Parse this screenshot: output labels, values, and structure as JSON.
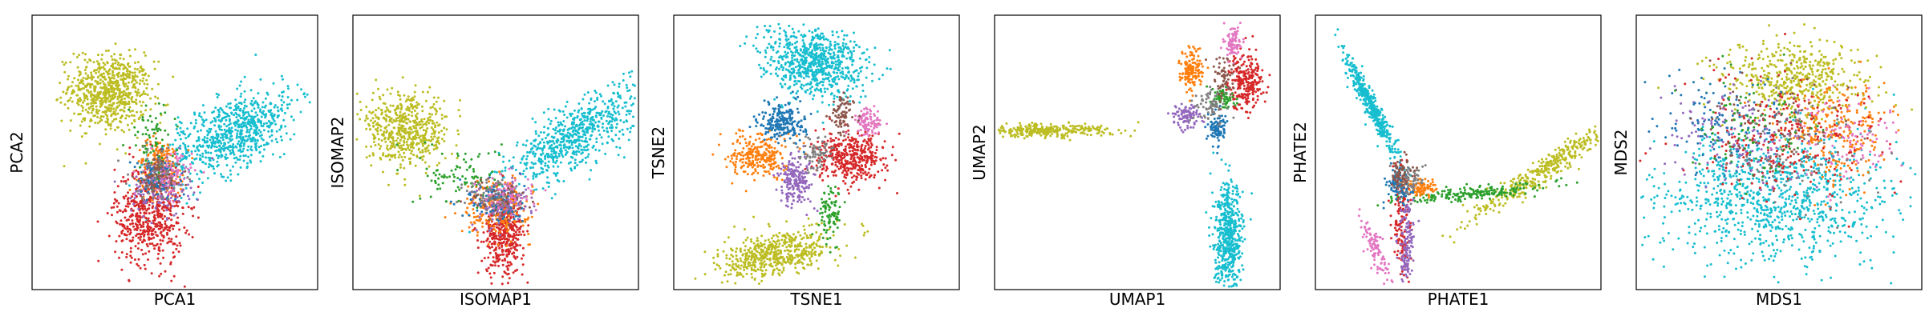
{
  "figure": {
    "panel_count": 6
  },
  "palette": {
    "blue": "#1f77b4",
    "orange": "#ff7f0e",
    "green": "#2ca02c",
    "red": "#d62728",
    "purple": "#9467bd",
    "brown": "#8c564b",
    "pink": "#e377c2",
    "gray": "#7f7f7f",
    "olive": "#bcbd22",
    "cyan": "#17becf"
  },
  "chart_data": [
    {
      "type": "scatter",
      "xlabel": "PCA1",
      "ylabel": "PCA2",
      "xlim": [
        0,
        1
      ],
      "ylim": [
        0,
        1
      ],
      "xticks": false,
      "yticks": false,
      "grid": false,
      "legend": "none",
      "clusters": [
        {
          "color": "olive",
          "n": 700,
          "cx": 0.27,
          "cy": 0.72,
          "sx": 0.07,
          "sy": 0.07,
          "rot": -10
        },
        {
          "color": "cyan",
          "n": 750,
          "cx": 0.7,
          "cy": 0.57,
          "sx": 0.13,
          "sy": 0.06,
          "rot": 30
        },
        {
          "color": "red",
          "n": 550,
          "cx": 0.41,
          "cy": 0.27,
          "sx": 0.06,
          "sy": 0.09,
          "rot": 0
        },
        {
          "color": "orange",
          "n": 200,
          "cx": 0.45,
          "cy": 0.45,
          "sx": 0.04,
          "sy": 0.05,
          "rot": 0
        },
        {
          "color": "purple",
          "n": 140,
          "cx": 0.45,
          "cy": 0.37,
          "sx": 0.05,
          "sy": 0.05,
          "rot": 0
        },
        {
          "color": "blue",
          "n": 90,
          "cx": 0.43,
          "cy": 0.4,
          "sx": 0.04,
          "sy": 0.04,
          "rot": 0
        },
        {
          "color": "pink",
          "n": 90,
          "cx": 0.48,
          "cy": 0.42,
          "sx": 0.04,
          "sy": 0.04,
          "rot": 0
        },
        {
          "color": "green",
          "n": 70,
          "cx": 0.42,
          "cy": 0.55,
          "sx": 0.04,
          "sy": 0.06,
          "rot": 0
        },
        {
          "color": "gray",
          "n": 70,
          "cx": 0.44,
          "cy": 0.43,
          "sx": 0.05,
          "sy": 0.05,
          "rot": 0
        },
        {
          "color": "brown",
          "n": 60,
          "cx": 0.44,
          "cy": 0.41,
          "sx": 0.04,
          "sy": 0.04,
          "rot": 0
        }
      ]
    },
    {
      "type": "scatter",
      "xlabel": "ISOMAP1",
      "ylabel": "ISOMAP2",
      "xlim": [
        0,
        1
      ],
      "ylim": [
        0,
        1
      ],
      "xticks": false,
      "yticks": false,
      "grid": false,
      "legend": "none",
      "clusters": [
        {
          "color": "olive",
          "n": 550,
          "cx": 0.18,
          "cy": 0.58,
          "sx": 0.08,
          "sy": 0.06,
          "rot": -20
        },
        {
          "color": "cyan",
          "n": 700,
          "cx": 0.78,
          "cy": 0.56,
          "sx": 0.14,
          "sy": 0.05,
          "rot": 35
        },
        {
          "color": "red",
          "n": 400,
          "cx": 0.53,
          "cy": 0.2,
          "sx": 0.035,
          "sy": 0.07,
          "rot": 0
        },
        {
          "color": "orange",
          "n": 220,
          "cx": 0.5,
          "cy": 0.3,
          "sx": 0.06,
          "sy": 0.05,
          "rot": 0
        },
        {
          "color": "purple",
          "n": 130,
          "cx": 0.52,
          "cy": 0.31,
          "sx": 0.05,
          "sy": 0.04,
          "rot": 0
        },
        {
          "color": "blue",
          "n": 90,
          "cx": 0.5,
          "cy": 0.32,
          "sx": 0.05,
          "sy": 0.04,
          "rot": 0
        },
        {
          "color": "green",
          "n": 90,
          "cx": 0.38,
          "cy": 0.42,
          "sx": 0.07,
          "sy": 0.05,
          "rot": 0
        },
        {
          "color": "gray",
          "n": 70,
          "cx": 0.5,
          "cy": 0.34,
          "sx": 0.05,
          "sy": 0.04,
          "rot": 0
        },
        {
          "color": "brown",
          "n": 60,
          "cx": 0.52,
          "cy": 0.33,
          "sx": 0.05,
          "sy": 0.04,
          "rot": 0
        },
        {
          "color": "pink",
          "n": 60,
          "cx": 0.55,
          "cy": 0.35,
          "sx": 0.05,
          "sy": 0.04,
          "rot": 0
        }
      ]
    },
    {
      "type": "scatter",
      "xlabel": "TSNE1",
      "ylabel": "TSNE2",
      "xlim": [
        0,
        1
      ],
      "ylim": [
        0,
        1
      ],
      "xticks": false,
      "yticks": false,
      "grid": false,
      "legend": "none",
      "clusters": [
        {
          "color": "cyan",
          "n": 750,
          "cx": 0.49,
          "cy": 0.83,
          "sx": 0.09,
          "sy": 0.06,
          "rot": -15
        },
        {
          "color": "olive",
          "n": 550,
          "cx": 0.36,
          "cy": 0.13,
          "sx": 0.1,
          "sy": 0.04,
          "rot": 15
        },
        {
          "color": "red",
          "n": 400,
          "cx": 0.62,
          "cy": 0.48,
          "sx": 0.06,
          "sy": 0.045,
          "rot": 0
        },
        {
          "color": "orange",
          "n": 250,
          "cx": 0.3,
          "cy": 0.49,
          "sx": 0.05,
          "sy": 0.04,
          "rot": 0
        },
        {
          "color": "blue",
          "n": 220,
          "cx": 0.38,
          "cy": 0.61,
          "sx": 0.04,
          "sy": 0.035,
          "rot": 0
        },
        {
          "color": "purple",
          "n": 200,
          "cx": 0.43,
          "cy": 0.4,
          "sx": 0.03,
          "sy": 0.045,
          "rot": 0
        },
        {
          "color": "pink",
          "n": 100,
          "cx": 0.68,
          "cy": 0.61,
          "sx": 0.025,
          "sy": 0.025,
          "rot": 0
        },
        {
          "color": "green",
          "n": 90,
          "cx": 0.55,
          "cy": 0.28,
          "sx": 0.02,
          "sy": 0.05,
          "rot": 0
        },
        {
          "color": "brown",
          "n": 80,
          "cx": 0.59,
          "cy": 0.63,
          "sx": 0.02,
          "sy": 0.04,
          "rot": 0
        },
        {
          "color": "gray",
          "n": 70,
          "cx": 0.5,
          "cy": 0.5,
          "sx": 0.03,
          "sy": 0.03,
          "rot": 0
        }
      ]
    },
    {
      "type": "scatter",
      "xlabel": "UMAP1",
      "ylabel": "UMAP2",
      "xlim": [
        0,
        1
      ],
      "ylim": [
        0,
        1
      ],
      "xticks": false,
      "yticks": false,
      "grid": false,
      "legend": "none",
      "clusters": [
        {
          "color": "olive",
          "n": 300,
          "cx": 0.17,
          "cy": 0.58,
          "sx": 0.12,
          "sy": 0.012,
          "rot": 0
        },
        {
          "color": "cyan",
          "n": 550,
          "cx": 0.82,
          "cy": 0.18,
          "sx": 0.025,
          "sy": 0.1,
          "rot": 0
        },
        {
          "color": "red",
          "n": 250,
          "cx": 0.88,
          "cy": 0.76,
          "sx": 0.03,
          "sy": 0.05,
          "rot": 0
        },
        {
          "color": "orange",
          "n": 150,
          "cx": 0.69,
          "cy": 0.8,
          "sx": 0.02,
          "sy": 0.04,
          "rot": 0
        },
        {
          "color": "purple",
          "n": 100,
          "cx": 0.67,
          "cy": 0.63,
          "sx": 0.025,
          "sy": 0.02,
          "rot": 0
        },
        {
          "color": "blue",
          "n": 90,
          "cx": 0.78,
          "cy": 0.59,
          "sx": 0.015,
          "sy": 0.03,
          "rot": 0
        },
        {
          "color": "pink",
          "n": 90,
          "cx": 0.84,
          "cy": 0.9,
          "sx": 0.015,
          "sy": 0.03,
          "rot": 0
        },
        {
          "color": "green",
          "n": 70,
          "cx": 0.8,
          "cy": 0.7,
          "sx": 0.02,
          "sy": 0.02,
          "rot": 0
        },
        {
          "color": "gray",
          "n": 70,
          "cx": 0.76,
          "cy": 0.67,
          "sx": 0.03,
          "sy": 0.03,
          "rot": 0
        },
        {
          "color": "brown",
          "n": 60,
          "cx": 0.8,
          "cy": 0.78,
          "sx": 0.02,
          "sy": 0.04,
          "rot": 0
        }
      ]
    },
    {
      "type": "scatter",
      "xlabel": "PHATE1",
      "ylabel": "PHATE2",
      "xlim": [
        0,
        1
      ],
      "ylim": [
        0,
        1
      ],
      "xticks": false,
      "yticks": false,
      "grid": false,
      "legend": "none",
      "clusters": [
        {
          "color": "cyan",
          "n": 450,
          "cx": 0.2,
          "cy": 0.66,
          "sx": 0.1,
          "sy": 0.012,
          "rot": -64
        },
        {
          "color": "olive",
          "n": 400,
          "cx": 0.82,
          "cy": 0.45,
          "sx": 0.17,
          "sy": 0.02,
          "rot": 35
        },
        {
          "color": "green",
          "n": 200,
          "cx": 0.55,
          "cy": 0.35,
          "sx": 0.13,
          "sy": 0.012,
          "rot": 5
        },
        {
          "color": "red",
          "n": 150,
          "cx": 0.3,
          "cy": 0.25,
          "sx": 0.015,
          "sy": 0.1,
          "rot": 0
        },
        {
          "color": "purple",
          "n": 140,
          "cx": 0.32,
          "cy": 0.16,
          "sx": 0.015,
          "sy": 0.08,
          "rot": 0
        },
        {
          "color": "pink",
          "n": 100,
          "cx": 0.21,
          "cy": 0.15,
          "sx": 0.012,
          "sy": 0.06,
          "rot": 20
        },
        {
          "color": "orange",
          "n": 100,
          "cx": 0.37,
          "cy": 0.37,
          "sx": 0.03,
          "sy": 0.015,
          "rot": 0
        },
        {
          "color": "blue",
          "n": 90,
          "cx": 0.29,
          "cy": 0.38,
          "sx": 0.02,
          "sy": 0.03,
          "rot": 0
        },
        {
          "color": "gray",
          "n": 70,
          "cx": 0.32,
          "cy": 0.4,
          "sx": 0.03,
          "sy": 0.03,
          "rot": 0
        },
        {
          "color": "brown",
          "n": 60,
          "cx": 0.3,
          "cy": 0.42,
          "sx": 0.02,
          "sy": 0.03,
          "rot": 0
        }
      ]
    },
    {
      "type": "scatter",
      "xlabel": "MDS1",
      "ylabel": "MDS2",
      "xlim": [
        0,
        1
      ],
      "ylim": [
        0,
        1
      ],
      "xticks": false,
      "yticks": false,
      "grid": false,
      "legend": "none",
      "clusters": [
        {
          "color": "cyan",
          "n": 1000,
          "cx": 0.48,
          "cy": 0.34,
          "sx": 0.2,
          "sy": 0.12,
          "rot": 0
        },
        {
          "color": "olive",
          "n": 500,
          "cx": 0.56,
          "cy": 0.76,
          "sx": 0.13,
          "sy": 0.07,
          "rot": 0
        },
        {
          "color": "orange",
          "n": 250,
          "cx": 0.7,
          "cy": 0.58,
          "sx": 0.09,
          "sy": 0.1,
          "rot": 0
        },
        {
          "color": "red",
          "n": 250,
          "cx": 0.52,
          "cy": 0.56,
          "sx": 0.17,
          "sy": 0.11,
          "rot": 0
        },
        {
          "color": "purple",
          "n": 150,
          "cx": 0.35,
          "cy": 0.55,
          "sx": 0.13,
          "sy": 0.09,
          "rot": 0
        },
        {
          "color": "blue",
          "n": 120,
          "cx": 0.32,
          "cy": 0.6,
          "sx": 0.12,
          "sy": 0.09,
          "rot": 0
        },
        {
          "color": "pink",
          "n": 100,
          "cx": 0.75,
          "cy": 0.55,
          "sx": 0.1,
          "sy": 0.09,
          "rot": 0
        },
        {
          "color": "green",
          "n": 90,
          "cx": 0.42,
          "cy": 0.6,
          "sx": 0.1,
          "sy": 0.09,
          "rot": 0
        },
        {
          "color": "gray",
          "n": 90,
          "cx": 0.55,
          "cy": 0.52,
          "sx": 0.15,
          "sy": 0.11,
          "rot": 0
        },
        {
          "color": "brown",
          "n": 70,
          "cx": 0.5,
          "cy": 0.58,
          "sx": 0.15,
          "sy": 0.1,
          "rot": 0
        }
      ]
    }
  ]
}
